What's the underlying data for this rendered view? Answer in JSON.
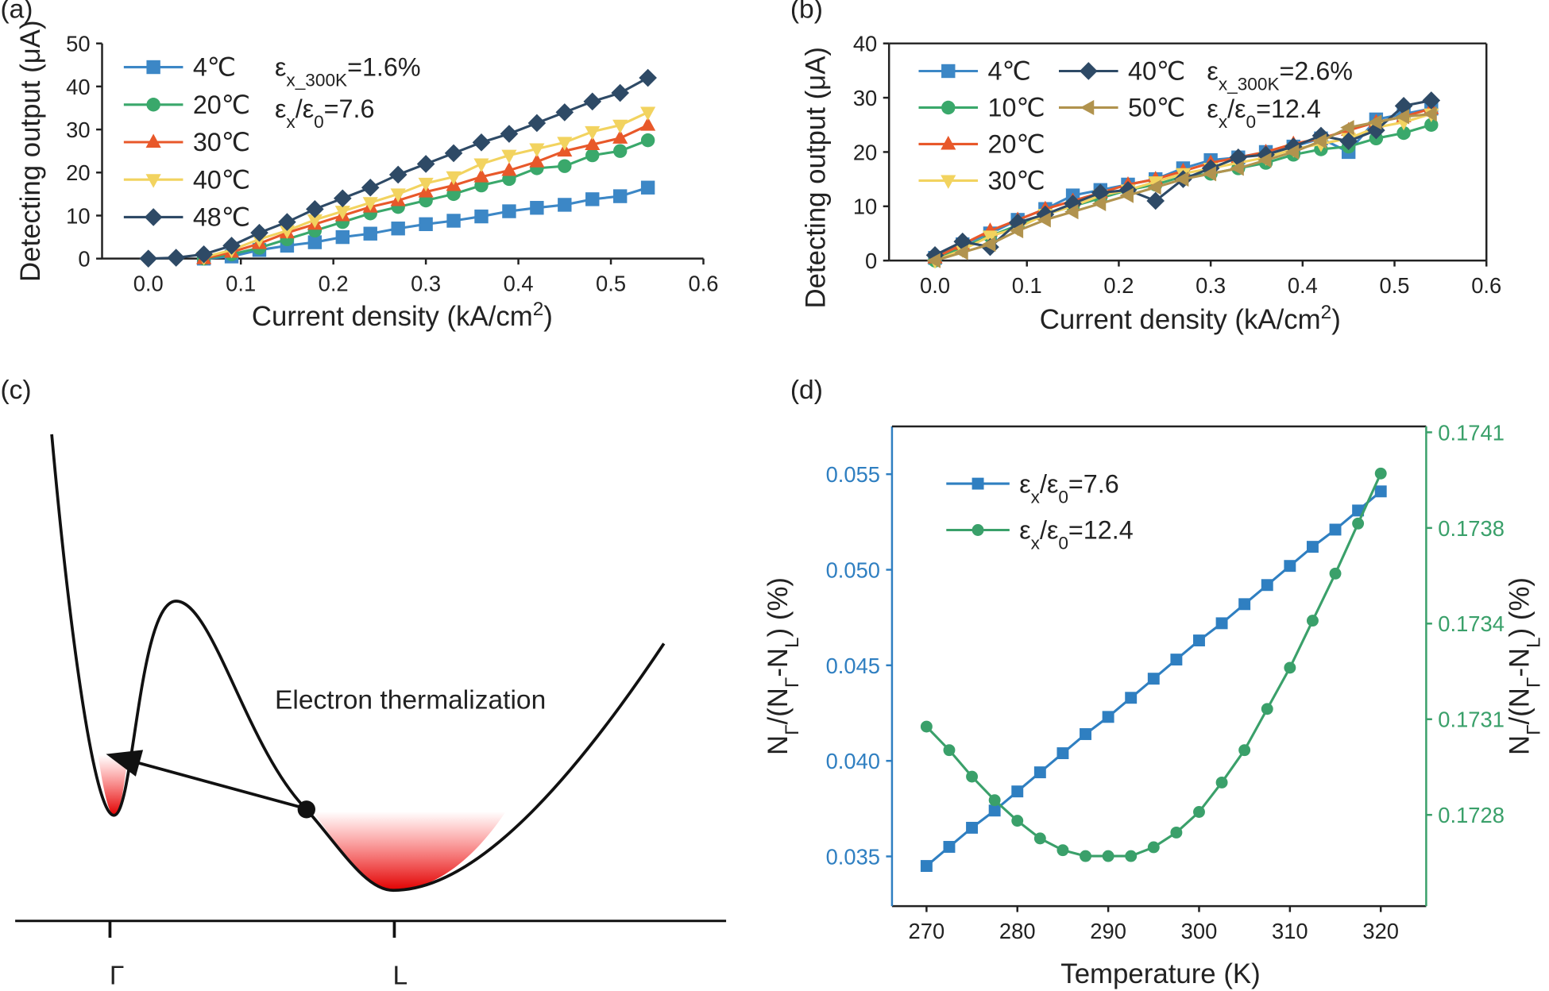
{
  "chart_data": [
    {
      "type": "line",
      "label": "(a)",
      "x": [
        0,
        0.03,
        0.06,
        0.09,
        0.12,
        0.15,
        0.18,
        0.21,
        0.24,
        0.27,
        0.3,
        0.33,
        0.36,
        0.39,
        0.42,
        0.45,
        0.48,
        0.51,
        0.54
      ],
      "series": [
        {
          "name": "4℃",
          "color": "#3c87c6",
          "marker": "square",
          "values": [
            null,
            null,
            0,
            0.5,
            2,
            3,
            3.8,
            5,
            5.8,
            7,
            8,
            8.8,
            9.8,
            11,
            11.8,
            12.5,
            13.8,
            14.5,
            16.5
          ]
        },
        {
          "name": "20℃",
          "color": "#3aa86b",
          "marker": "circle",
          "values": [
            null,
            null,
            0,
            1,
            2.5,
            4.5,
            6.5,
            8.5,
            10.5,
            12,
            13.5,
            15,
            17,
            18.5,
            21,
            21.5,
            24,
            25,
            27.5
          ]
        },
        {
          "name": "30℃",
          "color": "#e8582a",
          "marker": "triangle-up",
          "values": [
            null,
            null,
            0,
            1.5,
            3.5,
            6,
            8,
            10,
            12,
            13.5,
            15.5,
            17,
            19,
            20.5,
            22.5,
            25,
            26.5,
            28,
            31
          ]
        },
        {
          "name": "40℃",
          "color": "#f2d35f",
          "marker": "triangle-down",
          "values": [
            null,
            null,
            0.3,
            2,
            4.5,
            6.5,
            9,
            11,
            13,
            15,
            17.5,
            19,
            22,
            24,
            25.5,
            27,
            29.5,
            31,
            34
          ]
        },
        {
          "name": "48℃",
          "color": "#2e4a66",
          "marker": "diamond",
          "values": [
            0,
            0.2,
            1,
            3,
            6,
            8.5,
            11.5,
            14,
            16.5,
            19.5,
            22,
            24.5,
            27,
            29,
            31.5,
            34,
            36.5,
            38.5,
            42
          ]
        }
      ],
      "xlim": [
        -0.05,
        0.6
      ],
      "ylim": [
        0,
        50
      ],
      "xticks": [
        {
          "value": 0,
          "label": "0.0"
        },
        0.1,
        0.2,
        0.3,
        0.4,
        0.5,
        0.6
      ],
      "yticks": [
        0,
        10,
        20,
        30,
        40,
        50
      ],
      "x_label": [
        {
          "t": "Current density (kA/cm"
        },
        {
          "sup": "2"
        },
        {
          "t": ")"
        }
      ],
      "y_label": "Detecting output (μA)",
      "annotations": [
        [
          {
            "t": "ε"
          },
          {
            "sub": "x_300K"
          },
          {
            "t": "=1.6%"
          }
        ],
        [
          {
            "t": "ε"
          },
          {
            "sub": "x"
          },
          {
            "t": "/ε"
          },
          {
            "sub": "0"
          },
          {
            "t": "=7.6"
          }
        ]
      ],
      "frame": "open"
    },
    {
      "type": "line",
      "label": "(b)",
      "x": [
        0,
        0.03,
        0.06,
        0.09,
        0.12,
        0.15,
        0.18,
        0.21,
        0.24,
        0.27,
        0.3,
        0.33,
        0.36,
        0.39,
        0.42,
        0.45,
        0.48,
        0.51,
        0.54
      ],
      "series": [
        {
          "name": "4℃",
          "color": "#3c87c6",
          "marker": "square",
          "values": [
            0.5,
            3,
            5,
            7.5,
            9.5,
            12,
            13,
            14,
            15,
            17,
            18.5,
            19,
            20,
            21,
            22.5,
            20,
            26,
            27,
            28
          ]
        },
        {
          "name": "10℃",
          "color": "#3aa86b",
          "marker": "circle",
          "values": [
            0,
            2.5,
            4.5,
            6.5,
            8.5,
            10,
            11.5,
            13,
            14,
            15.5,
            16,
            17,
            18,
            19.5,
            20.5,
            21,
            22.5,
            23.5,
            25
          ]
        },
        {
          "name": "20℃",
          "color": "#e8582a",
          "marker": "triangle-up",
          "values": [
            0.5,
            3,
            5.5,
            7.5,
            9.5,
            11,
            12.5,
            14,
            15,
            16.5,
            18,
            19,
            20,
            21.5,
            22.5,
            24,
            25.5,
            26.5,
            28
          ]
        },
        {
          "name": "30℃",
          "color": "#f2d35f",
          "marker": "triangle-down",
          "values": [
            0,
            2,
            4.5,
            6,
            8.5,
            10,
            12,
            13,
            14.5,
            16,
            17,
            18,
            19,
            20.5,
            21.5,
            22.5,
            24.5,
            25.5,
            27
          ]
        },
        {
          "name": "40℃",
          "color": "#2e4a66",
          "marker": "diamond",
          "values": [
            1,
            3.5,
            2.5,
            7,
            8.5,
            10.5,
            12.5,
            13,
            11,
            15,
            17,
            19,
            19.5,
            21,
            23,
            22,
            24,
            28.5,
            29.5
          ]
        },
        {
          "name": "50℃",
          "color": "#b1934e",
          "marker": "triangle-left",
          "values": [
            0,
            1.5,
            3,
            5.5,
            7.5,
            9,
            10.5,
            12,
            13.5,
            15,
            16,
            17,
            18.5,
            20,
            22,
            24.5,
            25.5,
            26.5,
            27
          ]
        }
      ],
      "xlim": [
        -0.05,
        0.6
      ],
      "ylim": [
        0,
        40
      ],
      "xticks": [
        {
          "value": 0,
          "label": "0.0"
        },
        0.1,
        0.2,
        0.3,
        0.4,
        0.5,
        0.6
      ],
      "yticks": [
        0,
        10,
        20,
        30,
        40
      ],
      "x_label": [
        {
          "t": "Current density (kA/cm"
        },
        {
          "sup": "2"
        },
        {
          "t": ")"
        }
      ],
      "y_label": "Detecting output (μA)",
      "annotations": [
        [
          {
            "t": "ε"
          },
          {
            "sub": "x_300K"
          },
          {
            "t": "=2.6%"
          }
        ],
        [
          {
            "t": "ε"
          },
          {
            "sub": "x"
          },
          {
            "t": "/ε"
          },
          {
            "sub": "0"
          },
          {
            "t": "=12.4"
          }
        ]
      ],
      "frame": "box"
    },
    {
      "type": "line",
      "label": "(d)",
      "x": [
        270,
        272.5,
        275,
        277.5,
        280,
        282.5,
        285,
        287.5,
        290,
        292.5,
        295,
        297.5,
        300,
        302.5,
        305,
        307.5,
        310,
        312.5,
        315,
        317.5,
        320
      ],
      "series": [
        {
          "name": [
            {
              "t": "ε"
            },
            {
              "sub": "x"
            },
            {
              "t": "/ε"
            },
            {
              "sub": "0"
            },
            {
              "t": "=7.6"
            }
          ],
          "color": "#2f7fc1",
          "marker": "square",
          "values": [
            0.0345,
            0.0355,
            0.0365,
            0.0374,
            0.0384,
            0.0394,
            0.0404,
            0.0414,
            0.0423,
            0.0433,
            0.0443,
            0.0453,
            0.0463,
            0.0472,
            0.0482,
            0.0492,
            0.0502,
            0.0512,
            0.0521,
            0.0531,
            0.0541
          ]
        },
        {
          "name": [
            {
              "t": "ε"
            },
            {
              "sub": "x"
            },
            {
              "t": "/ε"
            },
            {
              "sub": "0"
            },
            {
              "t": "=12.4"
            }
          ],
          "color": "#3aa06a",
          "marker": "circle",
          "axis": "y2",
          "values": [
            0.1731,
            0.17302,
            0.17293,
            0.17285,
            0.17278,
            0.17272,
            0.17268,
            0.17266,
            0.17266,
            0.17266,
            0.17269,
            0.17274,
            0.17281,
            0.17291,
            0.17302,
            0.17316,
            0.1733,
            0.17346,
            0.17362,
            0.17379,
            0.17396
          ]
        }
      ],
      "xlim": [
        266.2,
        325
      ],
      "ylim": [
        0.0324,
        0.0575
      ],
      "y2lim": [
        0.17249,
        0.17412
      ],
      "xticks": [
        270,
        280,
        290,
        300,
        310,
        320
      ],
      "yticks": [
        0.035,
        {
          "value": 0.04,
          "label": "0.040"
        },
        0.045,
        {
          "value": 0.05,
          "label": "0.050"
        },
        0.055
      ],
      "y2ticks": [
        0.1728,
        {
          "value": 0.173125,
          "label": "0.1731"
        },
        {
          "value": 0.17345,
          "label": "0.1734"
        },
        {
          "value": 0.173775,
          "label": "0.1738"
        },
        0.1741
      ],
      "x_label": "Temperature (K)",
      "y_label": [
        {
          "t": "N"
        },
        {
          "sub": "Γ"
        },
        {
          "t": "/(N"
        },
        {
          "sub": "Γ"
        },
        {
          "t": "-N"
        },
        {
          "sub": "L"
        },
        {
          "t": ") (%)"
        }
      ],
      "y2_label": [
        {
          "t": "N"
        },
        {
          "sub": "Γ"
        },
        {
          "t": "/(N"
        },
        {
          "sub": "Γ"
        },
        {
          "t": "-N"
        },
        {
          "sub": "L"
        },
        {
          "t": ") (%)"
        }
      ],
      "y_axis_color": "#2f7fc1",
      "y2_axis_color": "#3aa06a",
      "frame": "box"
    }
  ],
  "diagram": {
    "label": "(c)",
    "caption": "Electron  thermalization",
    "ticks": [
      "Γ",
      "L"
    ]
  }
}
